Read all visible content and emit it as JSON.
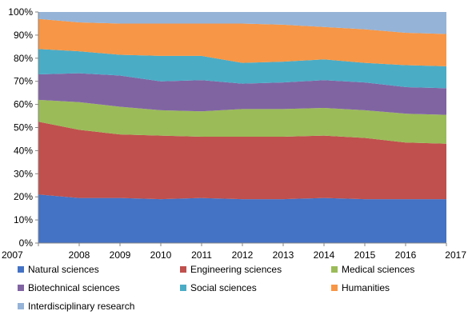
{
  "chart_data": {
    "type": "area",
    "stacked": true,
    "normalized": true,
    "x": [
      "2007",
      "2008",
      "2009",
      "2010",
      "2011",
      "2012",
      "2013",
      "2014",
      "2015",
      "2016",
      "2017"
    ],
    "y_ticks": [
      "0%",
      "10%",
      "20%",
      "30%",
      "40%",
      "50%",
      "60%",
      "70%",
      "80%",
      "90%",
      "100%"
    ],
    "ylim": [
      0,
      100
    ],
    "grid": false,
    "legend_position": "bottom",
    "series": [
      {
        "name": "Natural sciences",
        "color": "#4472C4",
        "values": [
          21,
          19.5,
          19.5,
          19,
          19.5,
          19,
          19,
          19.5,
          19,
          19,
          19
        ]
      },
      {
        "name": "Engineering sciences",
        "color": "#C0504D",
        "values": [
          31.5,
          29.5,
          27.5,
          27.5,
          26.5,
          27,
          27,
          27,
          26.5,
          24.5,
          24
        ]
      },
      {
        "name": "Medical sciences",
        "color": "#9BBB59",
        "values": [
          9.5,
          12,
          12,
          11,
          11,
          12,
          12,
          12,
          12,
          12.5,
          12.5
        ]
      },
      {
        "name": "Biotechnical sciences",
        "color": "#8064A2",
        "values": [
          11,
          12.5,
          13.5,
          12.5,
          13.5,
          11,
          11.5,
          12,
          12,
          11.5,
          11.5
        ]
      },
      {
        "name": "Social sciences",
        "color": "#4BACC6",
        "values": [
          11,
          9.5,
          9,
          11,
          10.5,
          9,
          9,
          9,
          8.5,
          9.5,
          9.5
        ]
      },
      {
        "name": "Humanities",
        "color": "#F79646",
        "values": [
          13,
          12.5,
          13.5,
          14,
          14,
          17,
          16,
          14,
          14.5,
          14,
          14
        ]
      },
      {
        "name": "Interdisciplinary research",
        "color": "#95B3D7",
        "values": [
          3,
          4.5,
          5,
          5,
          5,
          5,
          5.5,
          6.5,
          7.5,
          9,
          9.5
        ]
      }
    ]
  }
}
